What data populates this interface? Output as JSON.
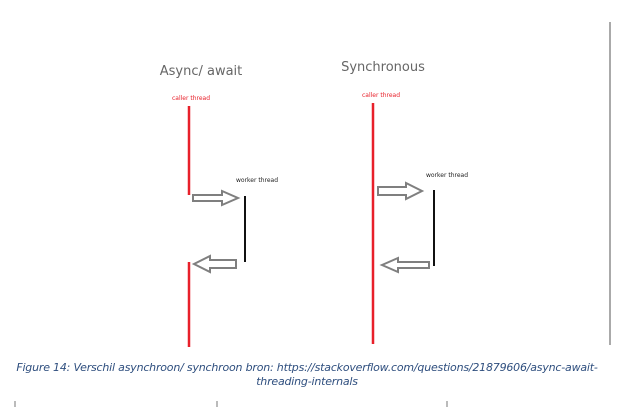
{
  "diagram": {
    "panels": [
      {
        "title": "Async/ await",
        "caller_label": "caller thread",
        "worker_label": "worker thread"
      },
      {
        "title": "Synchronous",
        "caller_label": "caller thread",
        "worker_label": "worker thread"
      }
    ],
    "colors": {
      "caller_line": "#e8202a",
      "worker_line": "#111111",
      "caller_label": "#e8202a",
      "worker_label": "#222222",
      "title": "#666666",
      "arrow_stroke": "#7f7f7f",
      "arrow_fill": "#ffffff",
      "caption": "#2e4e7e",
      "page_rule": "#555555"
    }
  },
  "caption": {
    "line1": "Figure 14: Verschil asynchroon/ synchroon bron: https://stackoverflow.com/questions/21879606/async-await-",
    "line2": "threading-internals"
  }
}
